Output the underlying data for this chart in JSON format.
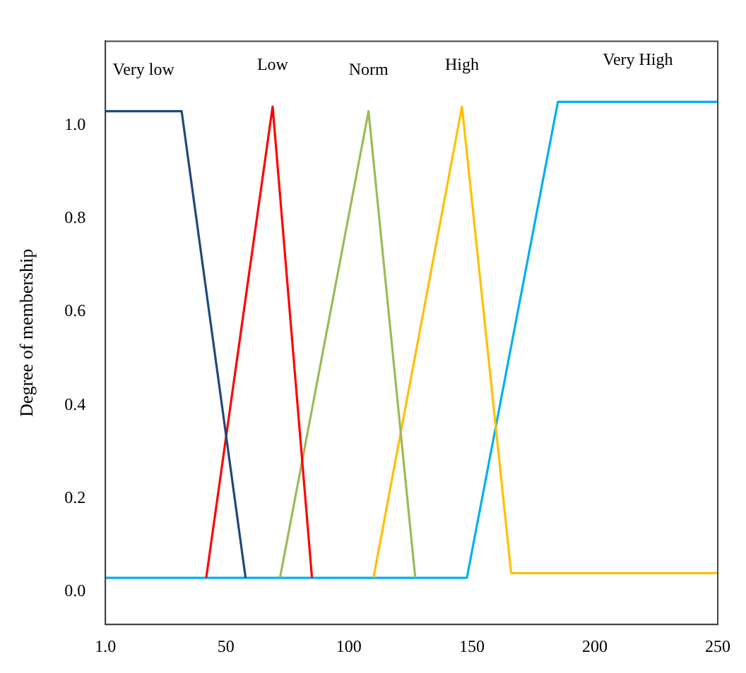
{
  "chart_data": {
    "type": "line",
    "ylabel": "Degree of membership",
    "xlim": [
      1,
      250
    ],
    "ylim": [
      -0.07,
      1.18
    ],
    "xticks": [
      {
        "value": 1,
        "label": "1.0"
      },
      50,
      100,
      150,
      200,
      250
    ],
    "yticks": [
      {
        "value": 0,
        "label": "0.0"
      },
      {
        "value": 0.2,
        "label": "0.2"
      },
      {
        "value": 0.4,
        "label": "0.4"
      },
      {
        "value": 0.6,
        "label": "0.6"
      },
      {
        "value": 0.8,
        "label": "0.8"
      },
      {
        "value": 1,
        "label": "1.0"
      }
    ],
    "grid": false,
    "legend": false,
    "marker": "none",
    "line_style": "solid",
    "series": [
      {
        "name": "Very low",
        "color": "#1f497d",
        "x": [
          1,
          32,
          58
        ],
        "values": [
          1.03,
          1.03,
          0.03
        ]
      },
      {
        "name": "Low",
        "color": "#ff0000",
        "x": [
          42,
          69,
          85
        ],
        "values": [
          0.03,
          1.04,
          0.03
        ]
      },
      {
        "name": "Norm",
        "color": "#9bbb59",
        "x": [
          72,
          108,
          127
        ],
        "values": [
          0.03,
          1.03,
          0.03
        ]
      },
      {
        "name": "High",
        "color": "#ffc000",
        "x": [
          110,
          146,
          166,
          250
        ],
        "values": [
          0.03,
          1.04,
          0.04,
          0.04
        ]
      },
      {
        "name": "Very High",
        "color": "#00b0f0",
        "x": [
          1,
          148,
          185,
          250
        ],
        "values": [
          0.03,
          0.03,
          1.05,
          1.05
        ]
      }
    ]
  }
}
